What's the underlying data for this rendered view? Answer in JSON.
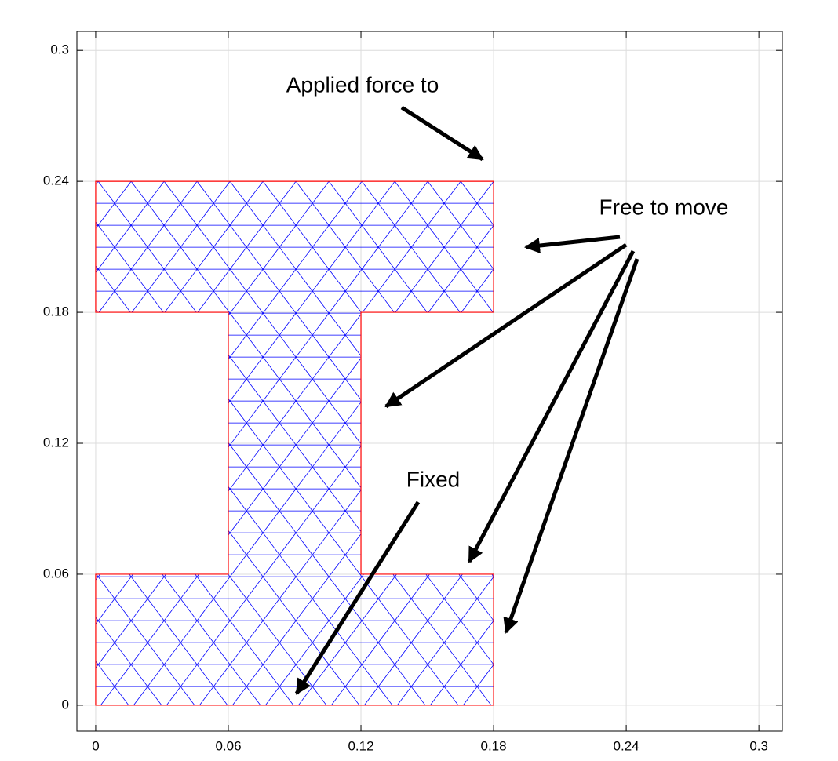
{
  "chart_data": {
    "type": "mesh",
    "x": [
      0,
      0.18,
      0.18,
      0.12,
      0.12,
      0.18,
      0.18,
      0,
      0,
      0.06,
      0.06,
      0
    ],
    "series": [
      {
        "color": "#ff0000",
        "values": [
          0,
          0,
          0.06,
          0.06,
          0.18,
          0.18,
          0.24,
          0.24,
          0.18,
          0.18,
          0.06,
          0.06
        ]
      }
    ],
    "mesh_color": "#0000ff",
    "xlim": [
      -0.0085,
      0.3106
    ],
    "ylim": [
      -0.0119,
      0.3087
    ],
    "xticks": [
      0,
      0.06,
      0.12,
      0.18,
      0.24,
      0.3
    ],
    "yticks": [
      0,
      0.06,
      0.12,
      0.18,
      0.24,
      0.3
    ],
    "grid": true,
    "annotations": [
      "Applied force to",
      "Free to move",
      "Fixed"
    ]
  }
}
